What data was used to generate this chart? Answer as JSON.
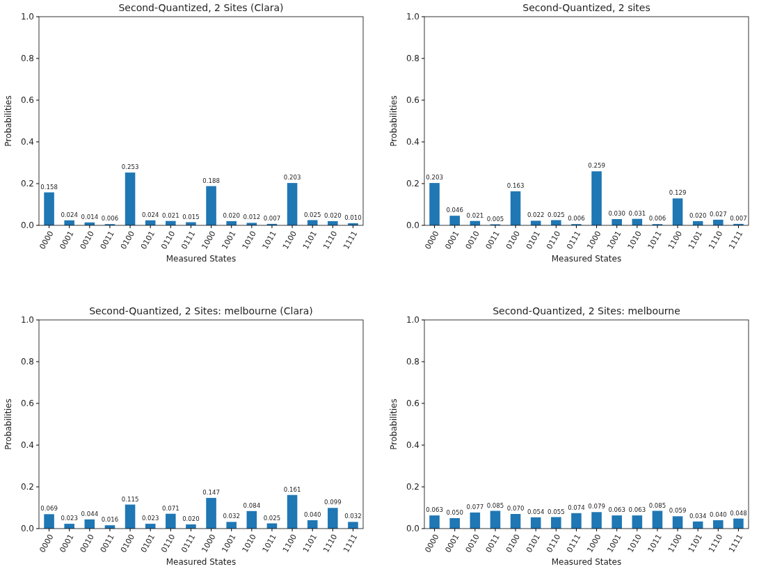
{
  "chart_data": [
    {
      "type": "bar",
      "title": "Second-Quantized, 2 Sites (Clara)",
      "xlabel": "Measured States",
      "ylabel": "Probabilities",
      "categories": [
        "0000",
        "0001",
        "0010",
        "0011",
        "0100",
        "0101",
        "0110",
        "0111",
        "1000",
        "1001",
        "1010",
        "1011",
        "1100",
        "1101",
        "1110",
        "1111"
      ],
      "series": [
        {
          "color": "#1f77b4",
          "values": [
            0.158,
            0.024,
            0.014,
            0.006,
            0.253,
            0.024,
            0.021,
            0.015,
            0.188,
            0.02,
            0.012,
            0.007,
            0.203,
            0.025,
            0.02,
            0.01
          ],
          "value_labels": [
            "0.158",
            "0.024",
            "0.014",
            "0.006",
            "0.253",
            "0.024",
            "0.021",
            "0.015",
            "0.188",
            "0.020",
            "0.012",
            "0.007",
            "0.203",
            "0.025",
            "0.020",
            "0.010"
          ]
        }
      ],
      "ylim": [
        0,
        1
      ],
      "yticks": [
        {
          "value": 0,
          "label": "0.0"
        },
        {
          "value": 0.2,
          "label": "0.2"
        },
        {
          "value": 0.4,
          "label": "0.4"
        },
        {
          "value": 0.6,
          "label": "0.6"
        },
        {
          "value": 0.8,
          "label": "0.8"
        },
        {
          "value": 1,
          "label": "1.0"
        }
      ]
    },
    {
      "type": "bar",
      "title": "Second-Quantized, 2 sites",
      "xlabel": "Measured States",
      "ylabel": "Probabilities",
      "categories": [
        "0000",
        "0001",
        "0010",
        "0011",
        "0100",
        "0101",
        "0110",
        "0111",
        "1000",
        "1001",
        "1010",
        "1011",
        "1100",
        "1101",
        "1110",
        "1111"
      ],
      "series": [
        {
          "color": "#1f77b4",
          "values": [
            0.203,
            0.046,
            0.021,
            0.005,
            0.163,
            0.022,
            0.025,
            0.006,
            0.259,
            0.03,
            0.031,
            0.006,
            0.129,
            0.02,
            0.027,
            0.007
          ],
          "value_labels": [
            "0.203",
            "0.046",
            "0.021",
            "0.005",
            "0.163",
            "0.022",
            "0.025",
            "0.006",
            "0.259",
            "0.030",
            "0.031",
            "0.006",
            "0.129",
            "0.020",
            "0.027",
            "0.007"
          ]
        }
      ],
      "ylim": [
        0,
        1
      ],
      "yticks": [
        {
          "value": 0,
          "label": "0.0"
        },
        {
          "value": 0.2,
          "label": "0.2"
        },
        {
          "value": 0.4,
          "label": "0.4"
        },
        {
          "value": 0.6,
          "label": "0.6"
        },
        {
          "value": 0.8,
          "label": "0.8"
        },
        {
          "value": 1,
          "label": "1.0"
        }
      ]
    },
    {
      "type": "bar",
      "title": "Second-Quantized, 2 Sites: melbourne (Clara)",
      "xlabel": "Measured States",
      "ylabel": "Probabilities",
      "categories": [
        "0000",
        "0001",
        "0010",
        "0011",
        "0100",
        "0101",
        "0110",
        "0111",
        "1000",
        "1001",
        "1010",
        "1011",
        "1100",
        "1101",
        "1110",
        "1111"
      ],
      "series": [
        {
          "color": "#1f77b4",
          "values": [
            0.069,
            0.023,
            0.044,
            0.016,
            0.115,
            0.023,
            0.071,
            0.02,
            0.147,
            0.032,
            0.084,
            0.025,
            0.161,
            0.04,
            0.099,
            0.032
          ],
          "value_labels": [
            "0.069",
            "0.023",
            "0.044",
            "0.016",
            "0.115",
            "0.023",
            "0.071",
            "0.020",
            "0.147",
            "0.032",
            "0.084",
            "0.025",
            "0.161",
            "0.040",
            "0.099",
            "0.032"
          ]
        }
      ],
      "ylim": [
        0,
        1
      ],
      "yticks": [
        {
          "value": 0,
          "label": "0.0"
        },
        {
          "value": 0.2,
          "label": "0.2"
        },
        {
          "value": 0.4,
          "label": "0.4"
        },
        {
          "value": 0.6,
          "label": "0.6"
        },
        {
          "value": 0.8,
          "label": "0.8"
        },
        {
          "value": 1,
          "label": "1.0"
        }
      ]
    },
    {
      "type": "bar",
      "title": "Second-Quantized, 2 Sites: melbourne",
      "xlabel": "Measured States",
      "ylabel": "Probabilities",
      "categories": [
        "0000",
        "0001",
        "0010",
        "0011",
        "0100",
        "0101",
        "0110",
        "0111",
        "1000",
        "1001",
        "1010",
        "1011",
        "1100",
        "1101",
        "1110",
        "1111"
      ],
      "series": [
        {
          "color": "#1f77b4",
          "values": [
            0.063,
            0.05,
            0.077,
            0.085,
            0.07,
            0.054,
            0.055,
            0.074,
            0.079,
            0.063,
            0.063,
            0.085,
            0.059,
            0.034,
            0.04,
            0.048
          ],
          "value_labels": [
            "0.063",
            "0.050",
            "0.077",
            "0.085",
            "0.070",
            "0.054",
            "0.055",
            "0.074",
            "0.079",
            "0.063",
            "0.063",
            "0.085",
            "0.059",
            "0.034",
            "0.040",
            "0.048"
          ]
        }
      ],
      "ylim": [
        0,
        1
      ],
      "yticks": [
        {
          "value": 0,
          "label": "0.0"
        },
        {
          "value": 0.2,
          "label": "0.2"
        },
        {
          "value": 0.4,
          "label": "0.4"
        },
        {
          "value": 0.6,
          "label": "0.6"
        },
        {
          "value": 0.8,
          "label": "0.8"
        },
        {
          "value": 1,
          "label": "1.0"
        }
      ]
    }
  ]
}
